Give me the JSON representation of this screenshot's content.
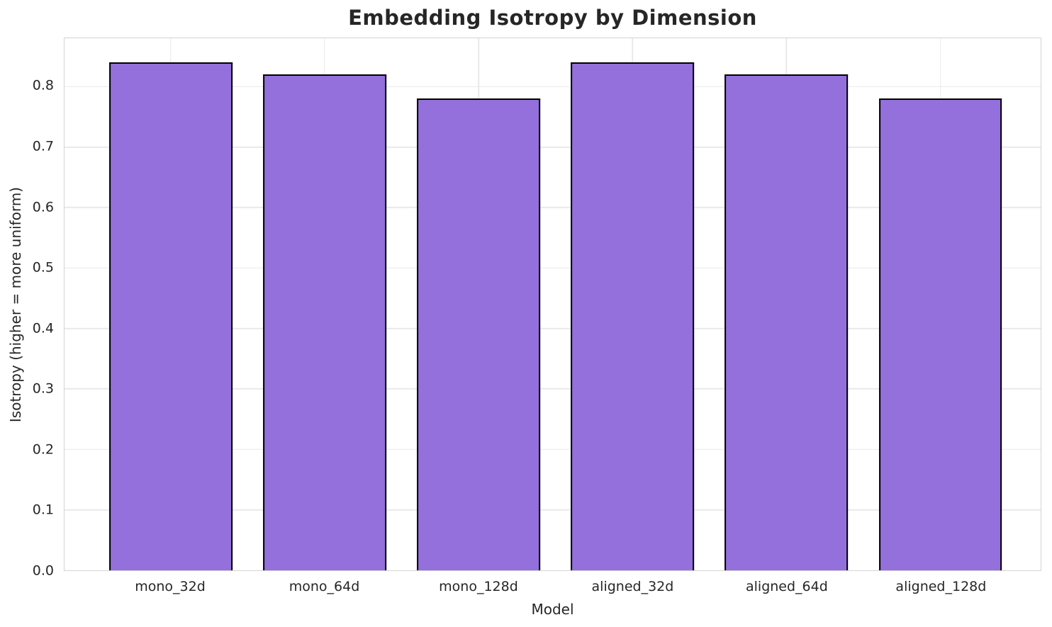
{
  "chart_data": {
    "type": "bar",
    "title": "Embedding Isotropy by Dimension",
    "xlabel": "Model",
    "ylabel": "Isotropy (higher = more uniform)",
    "categories": [
      "mono_32d",
      "mono_64d",
      "mono_128d",
      "aligned_32d",
      "aligned_64d",
      "aligned_128d"
    ],
    "values": [
      0.84,
      0.82,
      0.78,
      0.84,
      0.82,
      0.78
    ],
    "ylim": [
      0,
      0.88
    ],
    "ytick_labels": [
      "0.0",
      "0.1",
      "0.2",
      "0.3",
      "0.4",
      "0.5",
      "0.6",
      "0.7",
      "0.8"
    ],
    "grid": "on",
    "legend": "none",
    "colors": {
      "bar_fill": "#9370DB",
      "bar_edge": "#000000",
      "grid": "#e9e9e9",
      "spine": "#d4d4d4",
      "text": "#262626"
    }
  }
}
